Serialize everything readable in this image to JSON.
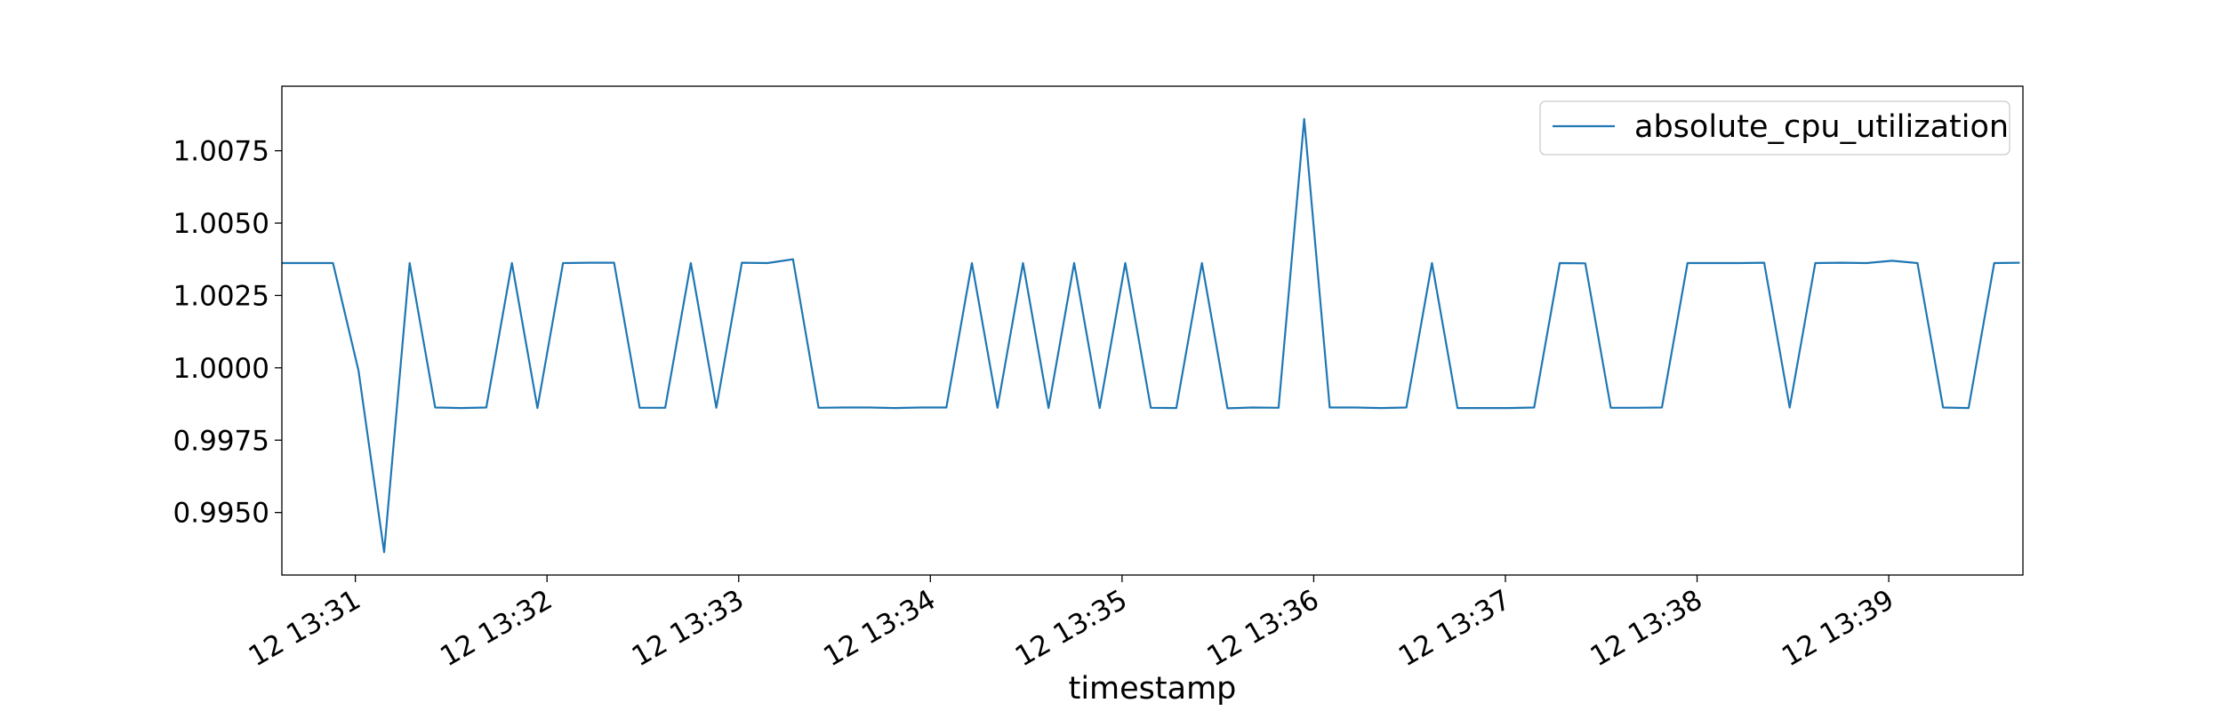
{
  "chart_data": {
    "type": "line",
    "xlabel": "timestamp",
    "ylabel": "",
    "ylim": [
      0.99284,
      1.00973
    ],
    "xlim": [
      "12 13:30:37",
      "12 13:39:42"
    ],
    "grid": false,
    "legend_position": "top-right",
    "y_ticks": [
      "0.9950",
      "0.9975",
      "1.0000",
      "1.0025",
      "1.0050",
      "1.0075"
    ],
    "x_ticks": [
      "12 13:31",
      "12 13:32",
      "12 13:33",
      "12 13:34",
      "12 13:35",
      "12 13:36",
      "12 13:37",
      "12 13:38",
      "12 13:39"
    ],
    "series": [
      {
        "name": "absolute_cpu_utilization",
        "color": "#1f77b4",
        "x": [
          "12 13:30:37",
          "12 13:30:45",
          "12 13:30:53",
          "12 13:31:01",
          "12 13:31:09",
          "12 13:31:17",
          "12 13:31:25",
          "12 13:31:33",
          "12 13:31:41",
          "12 13:31:49",
          "12 13:31:57",
          "12 13:32:05",
          "12 13:32:13",
          "12 13:32:21",
          "12 13:32:29",
          "12 13:32:37",
          "12 13:32:45",
          "12 13:32:53",
          "12 13:33:01",
          "12 13:33:09",
          "12 13:33:17",
          "12 13:33:25",
          "12 13:33:33",
          "12 13:33:41",
          "12 13:33:49",
          "12 13:33:57",
          "12 13:34:05",
          "12 13:34:13",
          "12 13:34:21",
          "12 13:34:29",
          "12 13:34:37",
          "12 13:34:45",
          "12 13:34:53",
          "12 13:35:01",
          "12 13:35:09",
          "12 13:35:17",
          "12 13:35:25",
          "12 13:35:33",
          "12 13:35:41",
          "12 13:35:49",
          "12 13:35:57",
          "12 13:36:05",
          "12 13:36:13",
          "12 13:36:21",
          "12 13:36:29",
          "12 13:36:37",
          "12 13:36:45",
          "12 13:36:53",
          "12 13:37:01",
          "12 13:37:09",
          "12 13:37:17",
          "12 13:37:25",
          "12 13:37:33",
          "12 13:37:41",
          "12 13:37:49",
          "12 13:37:57",
          "12 13:38:05",
          "12 13:38:13",
          "12 13:38:21",
          "12 13:38:29",
          "12 13:38:37",
          "12 13:38:45",
          "12 13:38:53",
          "12 13:39:01",
          "12 13:39:09",
          "12 13:39:17",
          "12 13:39:25",
          "12 13:39:33",
          "12 13:39:41"
        ],
        "values": [
          1.00362,
          1.00362,
          1.00362,
          0.9999,
          0.99363,
          1.00362,
          0.99863,
          0.99861,
          0.99863,
          1.00362,
          0.99861,
          1.00362,
          1.00363,
          1.00363,
          0.99862,
          0.99862,
          1.00362,
          0.99862,
          1.00363,
          1.00362,
          1.00375,
          0.99862,
          0.99863,
          0.99863,
          0.99861,
          0.99863,
          0.99863,
          1.00362,
          0.99862,
          1.00362,
          0.99861,
          1.00362,
          0.99861,
          1.00362,
          0.99862,
          0.99861,
          1.00362,
          0.9986,
          0.99863,
          0.99862,
          1.0086,
          0.99863,
          0.99863,
          0.99861,
          0.99863,
          1.00362,
          0.99861,
          0.99861,
          0.99861,
          0.99863,
          1.00362,
          1.00361,
          0.99862,
          0.99862,
          0.99863,
          1.00362,
          1.00362,
          1.00362,
          1.00363,
          0.99863,
          1.00362,
          1.00363,
          1.00362,
          1.0037,
          1.00362,
          0.99863,
          0.99861,
          1.00362,
          1.00363
        ]
      }
    ]
  }
}
